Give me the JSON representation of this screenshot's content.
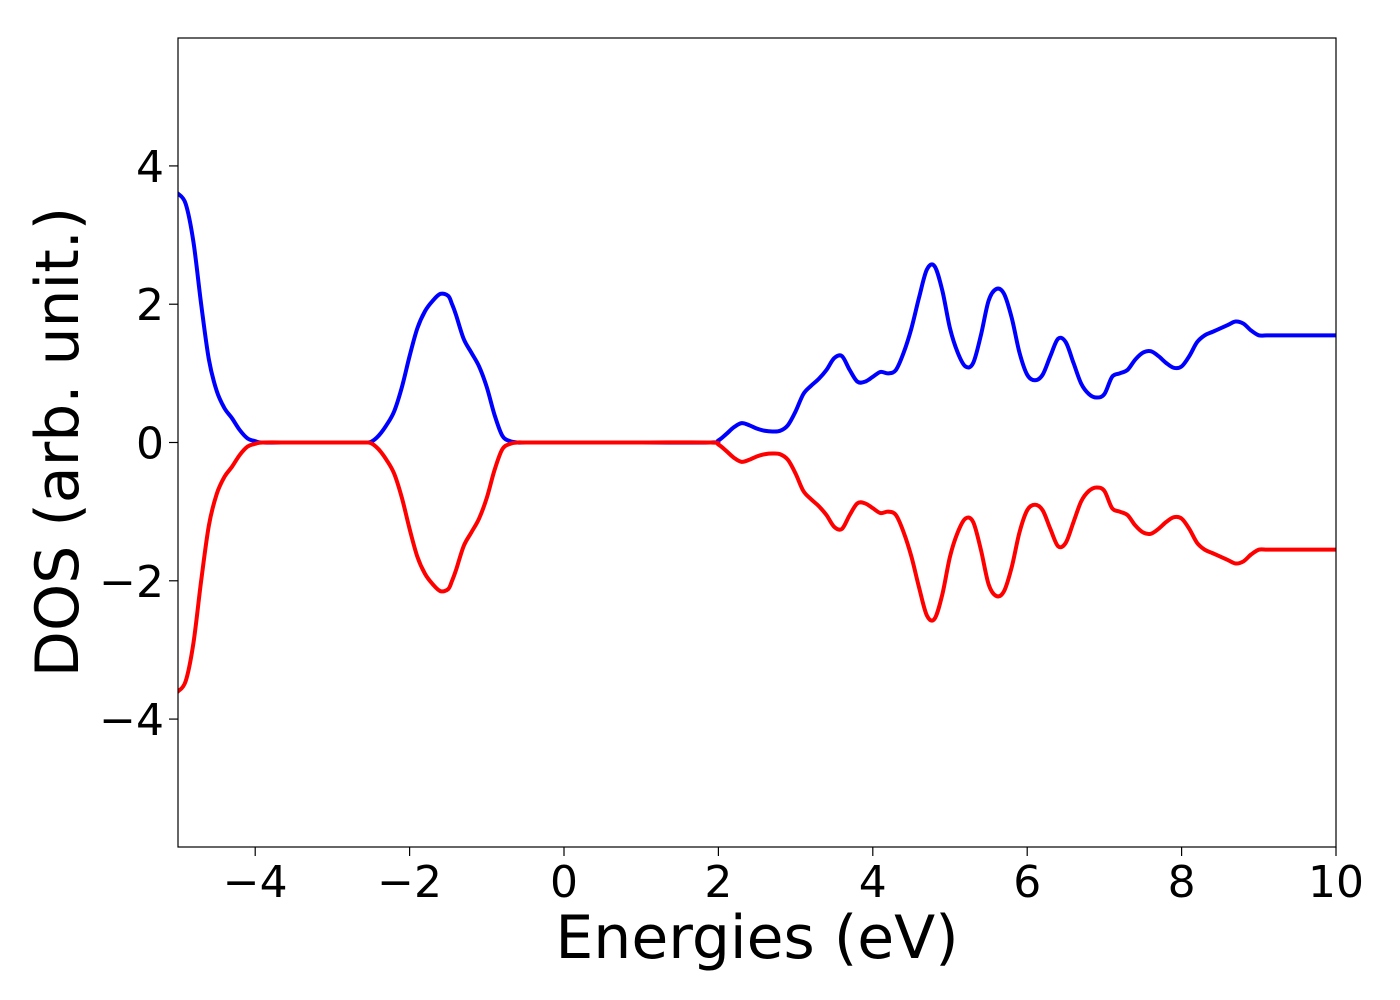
{
  "chart_data": {
    "type": "line",
    "title": "",
    "xlabel": "Energies (eV)",
    "ylabel": "DOS (arb. unit.)",
    "xlim": [
      -5,
      10
    ],
    "ylim": [
      -5.85,
      5.85
    ],
    "xticks": [
      -4,
      -2,
      0,
      2,
      4,
      6,
      8,
      10
    ],
    "yticks": [
      -4,
      -2,
      0,
      2,
      4
    ],
    "xtick_labels": [
      "−4",
      "−2",
      "0",
      "2",
      "4",
      "6",
      "8",
      "10"
    ],
    "ytick_labels": [
      "−4",
      "−2",
      "0",
      "2",
      "4"
    ],
    "grid": false,
    "series": [
      {
        "color": "#0000ff",
        "x": [
          -5.0,
          -4.9,
          -4.8,
          -4.7,
          -4.6,
          -4.5,
          -4.4,
          -4.3,
          -4.2,
          -4.1,
          -4.0,
          -3.9,
          -3.5,
          -3.0,
          -2.6,
          -2.5,
          -2.4,
          -2.3,
          -2.2,
          -2.1,
          -2.0,
          -1.9,
          -1.8,
          -1.7,
          -1.6,
          -1.5,
          -1.45,
          -1.4,
          -1.3,
          -1.2,
          -1.1,
          -1.0,
          -0.9,
          -0.8,
          -0.7,
          -0.6,
          -0.5,
          0.0,
          1.0,
          1.9,
          2.0,
          2.1,
          2.2,
          2.3,
          2.4,
          2.5,
          2.6,
          2.7,
          2.8,
          2.9,
          3.0,
          3.1,
          3.2,
          3.3,
          3.4,
          3.5,
          3.6,
          3.7,
          3.8,
          3.9,
          4.0,
          4.1,
          4.2,
          4.3,
          4.4,
          4.5,
          4.6,
          4.7,
          4.8,
          4.9,
          5.0,
          5.1,
          5.2,
          5.3,
          5.4,
          5.5,
          5.6,
          5.7,
          5.8,
          5.9,
          6.0,
          6.1,
          6.2,
          6.3,
          6.4,
          6.5,
          6.6,
          6.7,
          6.8,
          6.9,
          7.0,
          7.1,
          7.2,
          7.3,
          7.4,
          7.5,
          7.6,
          7.7,
          7.8,
          7.9,
          8.0,
          8.1,
          8.2,
          8.3,
          8.4,
          8.5,
          8.6,
          8.7,
          8.8,
          8.9,
          9.0,
          9.1,
          9.2,
          9.3,
          9.4,
          9.5,
          9.6,
          9.7,
          9.8,
          9.9,
          10.0
        ],
        "y": [
          3.6,
          3.45,
          2.9,
          2.0,
          1.2,
          0.75,
          0.5,
          0.35,
          0.18,
          0.06,
          0.02,
          0.0,
          0.0,
          0.0,
          0.0,
          0.01,
          0.1,
          0.25,
          0.45,
          0.8,
          1.25,
          1.65,
          1.9,
          2.05,
          2.15,
          2.12,
          2.0,
          1.85,
          1.5,
          1.3,
          1.1,
          0.8,
          0.4,
          0.1,
          0.02,
          0.0,
          0.0,
          0.0,
          0.0,
          0.0,
          0.03,
          0.12,
          0.22,
          0.28,
          0.25,
          0.2,
          0.17,
          0.16,
          0.17,
          0.25,
          0.45,
          0.7,
          0.82,
          0.92,
          1.05,
          1.22,
          1.25,
          1.05,
          0.88,
          0.88,
          0.95,
          1.02,
          1.0,
          1.05,
          1.3,
          1.65,
          2.1,
          2.5,
          2.55,
          2.2,
          1.65,
          1.3,
          1.1,
          1.15,
          1.55,
          2.05,
          2.22,
          2.15,
          1.8,
          1.3,
          0.98,
          0.9,
          0.98,
          1.25,
          1.5,
          1.45,
          1.15,
          0.85,
          0.7,
          0.65,
          0.7,
          0.95,
          1.0,
          1.05,
          1.2,
          1.3,
          1.32,
          1.25,
          1.15,
          1.08,
          1.1,
          1.25,
          1.45,
          1.55,
          1.6,
          1.65,
          1.7,
          1.75,
          1.72,
          1.62,
          1.55,
          1.55,
          1.55,
          1.55,
          1.55,
          1.55,
          1.55,
          1.55,
          1.55,
          1.55,
          1.55
        ]
      },
      {
        "color": "#ff0000",
        "x": [
          -5.0,
          -4.9,
          -4.8,
          -4.7,
          -4.6,
          -4.5,
          -4.4,
          -4.3,
          -4.2,
          -4.1,
          -4.0,
          -3.9,
          -3.5,
          -3.0,
          -2.6,
          -2.5,
          -2.4,
          -2.3,
          -2.2,
          -2.1,
          -2.0,
          -1.9,
          -1.8,
          -1.7,
          -1.6,
          -1.5,
          -1.45,
          -1.4,
          -1.3,
          -1.2,
          -1.1,
          -1.0,
          -0.9,
          -0.8,
          -0.7,
          -0.6,
          -0.5,
          0.0,
          1.0,
          1.9,
          2.0,
          2.1,
          2.2,
          2.3,
          2.4,
          2.5,
          2.6,
          2.7,
          2.8,
          2.9,
          3.0,
          3.1,
          3.2,
          3.3,
          3.4,
          3.5,
          3.6,
          3.7,
          3.8,
          3.9,
          4.0,
          4.1,
          4.2,
          4.3,
          4.4,
          4.5,
          4.6,
          4.7,
          4.8,
          4.9,
          5.0,
          5.1,
          5.2,
          5.3,
          5.4,
          5.5,
          5.6,
          5.7,
          5.8,
          5.9,
          6.0,
          6.1,
          6.2,
          6.3,
          6.4,
          6.5,
          6.6,
          6.7,
          6.8,
          6.9,
          7.0,
          7.1,
          7.2,
          7.3,
          7.4,
          7.5,
          7.6,
          7.7,
          7.8,
          7.9,
          8.0,
          8.1,
          8.2,
          8.3,
          8.4,
          8.5,
          8.6,
          8.7,
          8.8,
          8.9,
          9.0,
          9.1,
          9.2,
          9.3,
          9.4,
          9.5,
          9.6,
          9.7,
          9.8,
          9.9,
          10.0
        ],
        "y": [
          -3.6,
          -3.45,
          -2.9,
          -2.0,
          -1.2,
          -0.75,
          -0.5,
          -0.35,
          -0.18,
          -0.06,
          -0.02,
          0.0,
          0.0,
          0.0,
          0.0,
          -0.01,
          -0.1,
          -0.25,
          -0.45,
          -0.8,
          -1.25,
          -1.65,
          -1.9,
          -2.05,
          -2.15,
          -2.12,
          -2.0,
          -1.85,
          -1.5,
          -1.3,
          -1.1,
          -0.8,
          -0.4,
          -0.1,
          -0.02,
          0.0,
          0.0,
          0.0,
          0.0,
          0.0,
          -0.03,
          -0.12,
          -0.22,
          -0.28,
          -0.25,
          -0.2,
          -0.17,
          -0.16,
          -0.17,
          -0.25,
          -0.45,
          -0.7,
          -0.82,
          -0.92,
          -1.05,
          -1.22,
          -1.25,
          -1.05,
          -0.88,
          -0.88,
          -0.95,
          -1.02,
          -1.0,
          -1.05,
          -1.3,
          -1.65,
          -2.1,
          -2.5,
          -2.55,
          -2.2,
          -1.65,
          -1.3,
          -1.1,
          -1.15,
          -1.55,
          -2.05,
          -2.22,
          -2.15,
          -1.8,
          -1.3,
          -0.98,
          -0.9,
          -0.98,
          -1.25,
          -1.5,
          -1.45,
          -1.15,
          -0.85,
          -0.7,
          -0.65,
          -0.7,
          -0.95,
          -1.0,
          -1.05,
          -1.2,
          -1.3,
          -1.32,
          -1.25,
          -1.15,
          -1.08,
          -1.1,
          -1.25,
          -1.45,
          -1.55,
          -1.6,
          -1.65,
          -1.7,
          -1.75,
          -1.72,
          -1.62,
          -1.55,
          -1.55,
          -1.55,
          -1.55,
          -1.55,
          -1.55,
          -1.55,
          -1.55,
          -1.55,
          -1.55,
          -1.55
        ]
      }
    ]
  }
}
